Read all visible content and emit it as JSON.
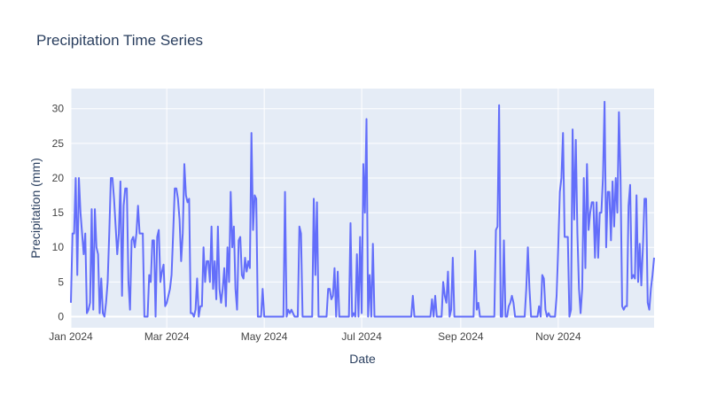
{
  "chart_data": {
    "type": "line",
    "title": "Precipitation Time Series",
    "xlabel": "Date",
    "ylabel": "Precipitation (mm)",
    "x": [
      "2024-01-01",
      "2024-01-02",
      "2024-01-03",
      "2024-01-04",
      "2024-01-05",
      "2024-01-06",
      "2024-01-07",
      "2024-01-08",
      "2024-01-09",
      "2024-01-10",
      "2024-01-11",
      "2024-01-12",
      "2024-01-13",
      "2024-01-14",
      "2024-01-15",
      "2024-01-16",
      "2024-01-17",
      "2024-01-18",
      "2024-01-19",
      "2024-01-20",
      "2024-01-21",
      "2024-01-22",
      "2024-01-23",
      "2024-01-24",
      "2024-01-25",
      "2024-01-26",
      "2024-01-27",
      "2024-01-28",
      "2024-01-29",
      "2024-01-30",
      "2024-01-31",
      "2024-02-01",
      "2024-02-02",
      "2024-02-03",
      "2024-02-04",
      "2024-02-05",
      "2024-02-06",
      "2024-02-07",
      "2024-02-08",
      "2024-02-09",
      "2024-02-10",
      "2024-02-11",
      "2024-02-12",
      "2024-02-13",
      "2024-02-14",
      "2024-02-15",
      "2024-02-16",
      "2024-02-17",
      "2024-02-18",
      "2024-02-19",
      "2024-02-20",
      "2024-02-21",
      "2024-02-22",
      "2024-02-23",
      "2024-02-24",
      "2024-02-25",
      "2024-02-26",
      "2024-02-27",
      "2024-02-28",
      "2024-02-29",
      "2024-03-01",
      "2024-03-02",
      "2024-03-03",
      "2024-03-04",
      "2024-03-05",
      "2024-03-06",
      "2024-03-07",
      "2024-03-08",
      "2024-03-09",
      "2024-03-10",
      "2024-03-11",
      "2024-03-12",
      "2024-03-13",
      "2024-03-14",
      "2024-03-15",
      "2024-03-16",
      "2024-03-17",
      "2024-03-18",
      "2024-03-19",
      "2024-03-20",
      "2024-03-21",
      "2024-03-22",
      "2024-03-23",
      "2024-03-24",
      "2024-03-25",
      "2024-03-26",
      "2024-03-27",
      "2024-03-28",
      "2024-03-29",
      "2024-03-30",
      "2024-03-31",
      "2024-04-01",
      "2024-04-02",
      "2024-04-03",
      "2024-04-04",
      "2024-04-05",
      "2024-04-06",
      "2024-04-07",
      "2024-04-08",
      "2024-04-09",
      "2024-04-10",
      "2024-04-11",
      "2024-04-12",
      "2024-04-13",
      "2024-04-14",
      "2024-04-15",
      "2024-04-16",
      "2024-04-17",
      "2024-04-18",
      "2024-04-19",
      "2024-04-20",
      "2024-04-21",
      "2024-04-22",
      "2024-04-23",
      "2024-04-24",
      "2024-04-25",
      "2024-04-26",
      "2024-04-27",
      "2024-04-28",
      "2024-04-29",
      "2024-04-30",
      "2024-05-01",
      "2024-05-02",
      "2024-05-03",
      "2024-05-04",
      "2024-05-05",
      "2024-05-06",
      "2024-05-07",
      "2024-05-08",
      "2024-05-09",
      "2024-05-10",
      "2024-05-11",
      "2024-05-12",
      "2024-05-13",
      "2024-05-14",
      "2024-05-15",
      "2024-05-16",
      "2024-05-17",
      "2024-05-18",
      "2024-05-19",
      "2024-05-20",
      "2024-05-21",
      "2024-05-22",
      "2024-05-23",
      "2024-05-24",
      "2024-05-25",
      "2024-05-26",
      "2024-05-27",
      "2024-05-28",
      "2024-05-29",
      "2024-05-30",
      "2024-05-31",
      "2024-06-01",
      "2024-06-02",
      "2024-06-03",
      "2024-06-04",
      "2024-06-05",
      "2024-06-06",
      "2024-06-07",
      "2024-06-08",
      "2024-06-09",
      "2024-06-10",
      "2024-06-11",
      "2024-06-12",
      "2024-06-13",
      "2024-06-14",
      "2024-06-15",
      "2024-06-16",
      "2024-06-17",
      "2024-06-18",
      "2024-06-19",
      "2024-06-20",
      "2024-06-21",
      "2024-06-22",
      "2024-06-23",
      "2024-06-24",
      "2024-06-25",
      "2024-06-26",
      "2024-06-27",
      "2024-06-28",
      "2024-06-29",
      "2024-06-30",
      "2024-07-01",
      "2024-07-02",
      "2024-07-03",
      "2024-07-04",
      "2024-07-05",
      "2024-07-06",
      "2024-07-07",
      "2024-07-08",
      "2024-07-09",
      "2024-07-10",
      "2024-07-11",
      "2024-07-12",
      "2024-07-13",
      "2024-07-14",
      "2024-07-15",
      "2024-07-16",
      "2024-07-17",
      "2024-07-18",
      "2024-07-19",
      "2024-07-20",
      "2024-07-21",
      "2024-07-22",
      "2024-07-23",
      "2024-07-24",
      "2024-07-25",
      "2024-07-26",
      "2024-07-27",
      "2024-07-28",
      "2024-07-29",
      "2024-07-30",
      "2024-07-31",
      "2024-08-01",
      "2024-08-02",
      "2024-08-03",
      "2024-08-04",
      "2024-08-05",
      "2024-08-06",
      "2024-08-07",
      "2024-08-08",
      "2024-08-09",
      "2024-08-10",
      "2024-08-11",
      "2024-08-12",
      "2024-08-13",
      "2024-08-14",
      "2024-08-15",
      "2024-08-16",
      "2024-08-17",
      "2024-08-18",
      "2024-08-19",
      "2024-08-20",
      "2024-08-21",
      "2024-08-22",
      "2024-08-23",
      "2024-08-24",
      "2024-08-25",
      "2024-08-26",
      "2024-08-27",
      "2024-08-28",
      "2024-08-29",
      "2024-08-30",
      "2024-08-31",
      "2024-09-01",
      "2024-09-02",
      "2024-09-03",
      "2024-09-04",
      "2024-09-05",
      "2024-09-06",
      "2024-09-07",
      "2024-09-08",
      "2024-09-09",
      "2024-09-10",
      "2024-09-11",
      "2024-09-12",
      "2024-09-13",
      "2024-09-14",
      "2024-09-15",
      "2024-09-16",
      "2024-09-17",
      "2024-09-18",
      "2024-09-19",
      "2024-09-20",
      "2024-09-21",
      "2024-09-22",
      "2024-09-23",
      "2024-09-24",
      "2024-09-25",
      "2024-09-26",
      "2024-09-27",
      "2024-09-28",
      "2024-09-29",
      "2024-09-30",
      "2024-10-01",
      "2024-10-02",
      "2024-10-03",
      "2024-10-04",
      "2024-10-05",
      "2024-10-06",
      "2024-10-07",
      "2024-10-08",
      "2024-10-09",
      "2024-10-10",
      "2024-10-11",
      "2024-10-12",
      "2024-10-13",
      "2024-10-14",
      "2024-10-15",
      "2024-10-16",
      "2024-10-17",
      "2024-10-18",
      "2024-10-19",
      "2024-10-20",
      "2024-10-21",
      "2024-10-22",
      "2024-10-23",
      "2024-10-24",
      "2024-10-25",
      "2024-10-26",
      "2024-10-27",
      "2024-10-28",
      "2024-10-29",
      "2024-10-30",
      "2024-10-31",
      "2024-11-01",
      "2024-11-02",
      "2024-11-03",
      "2024-11-04",
      "2024-11-05",
      "2024-11-06",
      "2024-11-07",
      "2024-11-08",
      "2024-11-09",
      "2024-11-10",
      "2024-11-11",
      "2024-11-12",
      "2024-11-13",
      "2024-11-14",
      "2024-11-15",
      "2024-11-16",
      "2024-11-17",
      "2024-11-18",
      "2024-11-19",
      "2024-11-20",
      "2024-11-21",
      "2024-11-22",
      "2024-11-23",
      "2024-11-24",
      "2024-11-25",
      "2024-11-26",
      "2024-11-27",
      "2024-11-28",
      "2024-11-29",
      "2024-11-30",
      "2024-12-01",
      "2024-12-02",
      "2024-12-03",
      "2024-12-04",
      "2024-12-05",
      "2024-12-06",
      "2024-12-07",
      "2024-12-08",
      "2024-12-09",
      "2024-12-10",
      "2024-12-11",
      "2024-12-12",
      "2024-12-13",
      "2024-12-14",
      "2024-12-15",
      "2024-12-16",
      "2024-12-17",
      "2024-12-18",
      "2024-12-19",
      "2024-12-20",
      "2024-12-21",
      "2024-12-22",
      "2024-12-23",
      "2024-12-24",
      "2024-12-25",
      "2024-12-26",
      "2024-12-27",
      "2024-12-28",
      "2024-12-29",
      "2024-12-30",
      "2024-12-31"
    ],
    "series": [
      {
        "name": "Precipitation",
        "color": "#636efa",
        "values": [
          2,
          12,
          12,
          20,
          6,
          20,
          15,
          12,
          9,
          12,
          0.5,
          1,
          2,
          15.5,
          1,
          15.5,
          10,
          9,
          0.5,
          5.5,
          0.5,
          0,
          2,
          5,
          12,
          20,
          20,
          17,
          13,
          9,
          12,
          19.5,
          3,
          16,
          18.5,
          18.5,
          5,
          1,
          11,
          11.5,
          10,
          12,
          16,
          12,
          12,
          12,
          0,
          0,
          0,
          6,
          5,
          11,
          11,
          0,
          11.5,
          12.5,
          5,
          6.5,
          7.5,
          1.5,
          2,
          3,
          4,
          6,
          12,
          18.5,
          18.5,
          17,
          14,
          8,
          12,
          22,
          17.5,
          16.5,
          17,
          0.5,
          0.5,
          0,
          1,
          5.5,
          0,
          1.5,
          1.5,
          10,
          5,
          8,
          8,
          5,
          13,
          4,
          8,
          2.5,
          13,
          4,
          2,
          4,
          7,
          1.5,
          10,
          5,
          18,
          10,
          13,
          4,
          1,
          11,
          11.5,
          6,
          5.5,
          8.5,
          6.5,
          8,
          7,
          26.5,
          12.5,
          17.5,
          17,
          0,
          0,
          0,
          4,
          0,
          0,
          0,
          0,
          0,
          0,
          0,
          0,
          0,
          0,
          0,
          0,
          0,
          18,
          0,
          1,
          0.5,
          1,
          0.5,
          0,
          0,
          0,
          13,
          12,
          0,
          0,
          0,
          0,
          0,
          0,
          0,
          17,
          6,
          16.5,
          0,
          0,
          0,
          0,
          0,
          0,
          4,
          4,
          2.5,
          3,
          7,
          0,
          6.5,
          0,
          0,
          0,
          0,
          0,
          0,
          0,
          13.5,
          0,
          0.5,
          0,
          9,
          0,
          11.5,
          0.5,
          22,
          15,
          28.5,
          0,
          6,
          0,
          10.5,
          0,
          0,
          0,
          0,
          0,
          0,
          0,
          0,
          0,
          0,
          0,
          0,
          0,
          0,
          0,
          0,
          0,
          0,
          0,
          0,
          0,
          0,
          0,
          0,
          3,
          0,
          0,
          0,
          0,
          0,
          0,
          0,
          0,
          0,
          0,
          0,
          2.5,
          0,
          3,
          0,
          0,
          0,
          0,
          5,
          3,
          2,
          6.5,
          0,
          1,
          8.5,
          0,
          0,
          0,
          0,
          0,
          0,
          0,
          0,
          0,
          0,
          0,
          0,
          0,
          9.5,
          1,
          2,
          0,
          0,
          0,
          0,
          0,
          0,
          0,
          0,
          0,
          0,
          12.5,
          13,
          30.5,
          0,
          0,
          11,
          0,
          0,
          1.5,
          2,
          3,
          2,
          0,
          0,
          0,
          0,
          0,
          0,
          0,
          4,
          10,
          4,
          0,
          0,
          0,
          0,
          0,
          1.5,
          0,
          6,
          5.5,
          1,
          0,
          0.5,
          0,
          0,
          0,
          0,
          3,
          10,
          18,
          20,
          26.5,
          11.5,
          11.5,
          11.5,
          0,
          1,
          27,
          14,
          25.5,
          12,
          4,
          0.5,
          4,
          20,
          7,
          22,
          12.5,
          15,
          16.5,
          16.5,
          8.5,
          16.5,
          8.5,
          15,
          15,
          20,
          31,
          10,
          18,
          18,
          11,
          19.5,
          13,
          20,
          15,
          29.5,
          20,
          1.5,
          1,
          1.5,
          1.5,
          16,
          19,
          5.5,
          6,
          5.5,
          17.5,
          5,
          10.5,
          4.5,
          10,
          17,
          17,
          2,
          1,
          4,
          6,
          8.5
        ]
      }
    ],
    "xlim": [
      "2024-01-01",
      "2024-12-31"
    ],
    "xticks": [
      {
        "value": "2024-01-01",
        "label": "Jan 2024"
      },
      {
        "value": "2024-03-01",
        "label": "Mar 2024"
      },
      {
        "value": "2024-05-01",
        "label": "May 2024"
      },
      {
        "value": "2024-07-01",
        "label": "Jul 2024"
      },
      {
        "value": "2024-09-01",
        "label": "Sep 2024"
      },
      {
        "value": "2024-11-01",
        "label": "Nov 2024"
      }
    ],
    "ylim": [
      -1.6,
      32.9
    ],
    "yticks": [
      0,
      5,
      10,
      15,
      20,
      25,
      30
    ],
    "grid": true
  }
}
